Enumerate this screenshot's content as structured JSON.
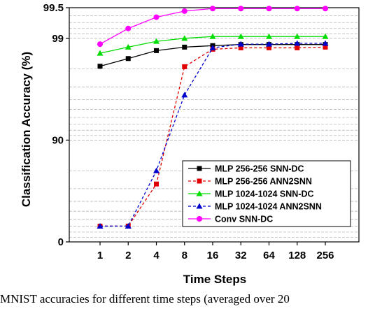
{
  "caption": "MNIST accuracies for different time steps (averaged over 20",
  "chart_data": {
    "type": "line",
    "xlabel": "Time Steps",
    "ylabel": "Classification Accuracy (%)",
    "categories": [
      "1",
      "2",
      "4",
      "8",
      "16",
      "32",
      "64",
      "128",
      "256"
    ],
    "y_scale": "log-of-error (ticks: 0, 90, 99, 99.5)",
    "y_ticks": [
      "0",
      "90",
      "99",
      "99.5"
    ],
    "grid": "horizontal minor lines",
    "legend_position": "lower-right",
    "series": [
      {
        "name": "MLP 256-256 SNN-DC",
        "color": "#000000",
        "marker": "square",
        "dashed": false,
        "values": [
          98.12,
          98.42,
          98.68,
          98.78,
          98.82,
          98.85,
          98.85,
          98.85,
          98.85
        ]
      },
      {
        "name": "MLP 256-256 ANN2SNN",
        "color": "#e00000",
        "marker": "square",
        "dashed": true,
        "values": [
          30,
          30,
          73,
          98.1,
          98.72,
          98.76,
          98.76,
          98.76,
          98.78
        ]
      },
      {
        "name": "MLP 1024-1024 SNN-DC",
        "color": "#00dd00",
        "marker": "triangle",
        "dashed": false,
        "values": [
          98.6,
          98.78,
          98.93,
          99.0,
          99.04,
          99.04,
          99.04,
          99.04,
          99.04
        ]
      },
      {
        "name": "MLP 1024-1024 ANN2SNN",
        "color": "#0000cc",
        "marker": "triangle",
        "dashed": true,
        "values": [
          30,
          30,
          80,
          96.4,
          98.76,
          98.86,
          98.86,
          98.88,
          98.88
        ]
      },
      {
        "name": "Conv SNN-DC",
        "color": "#ff00ff",
        "marker": "circle",
        "dashed": false,
        "values": [
          98.86,
          99.2,
          99.38,
          99.46,
          99.49,
          99.49,
          99.49,
          99.49,
          99.49
        ]
      }
    ]
  }
}
